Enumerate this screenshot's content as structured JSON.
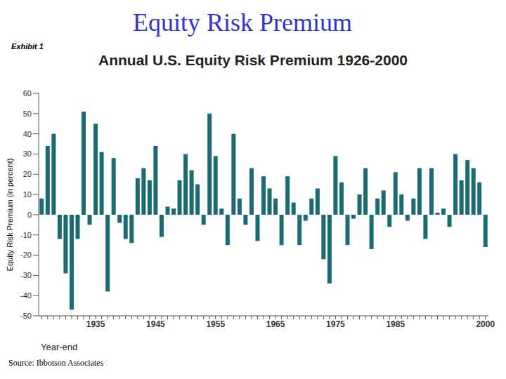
{
  "chart_data": {
    "type": "bar",
    "slide_title": "Equity Risk Premium",
    "exhibit_label": "Exhibit 1",
    "title": "Annual U.S. Equity Risk Premium 1926-2000",
    "x_label": "Year-end",
    "y_label": "Equity Risk Premium (in percent)",
    "source": "Source: Ibbotson Associates",
    "categories": [
      null,
      null,
      null,
      null,
      null,
      null,
      null,
      null,
      null,
      "1935",
      null,
      null,
      null,
      null,
      null,
      null,
      null,
      null,
      null,
      "1945",
      null,
      null,
      null,
      null,
      null,
      null,
      null,
      null,
      null,
      "1955",
      null,
      null,
      null,
      null,
      null,
      null,
      null,
      null,
      null,
      "1965",
      null,
      null,
      null,
      null,
      null,
      null,
      null,
      null,
      null,
      "1975",
      null,
      null,
      null,
      null,
      null,
      null,
      null,
      null,
      null,
      "1985",
      null,
      null,
      null,
      null,
      null,
      null,
      null,
      null,
      null,
      null,
      null,
      null,
      null,
      null,
      "2000"
    ],
    "values": [
      8,
      34,
      40,
      -12,
      -29,
      -47,
      -12,
      51,
      -5,
      45,
      31,
      -38,
      28,
      -4,
      -12,
      -14,
      18,
      23,
      17,
      34,
      -11,
      4,
      3,
      17,
      30,
      22,
      15,
      -5,
      50,
      29,
      3,
      -15,
      40,
      8,
      -5,
      23,
      -13,
      19,
      13,
      8,
      -15,
      19,
      6,
      -15,
      -3,
      8,
      13,
      -22,
      -34,
      29,
      16,
      -15,
      -2,
      10,
      23,
      -17,
      8,
      12,
      -6,
      21,
      10,
      -3,
      8,
      23,
      -12,
      23,
      1,
      3,
      -6,
      30,
      17,
      27,
      23,
      16,
      -16
    ],
    "color": "#1b6b73",
    "ylim": [
      -50,
      60
    ],
    "yticks": [
      -50,
      -40,
      -30,
      -20,
      -10,
      0,
      10,
      20,
      30,
      40,
      50,
      60
    ],
    "grid": false
  }
}
